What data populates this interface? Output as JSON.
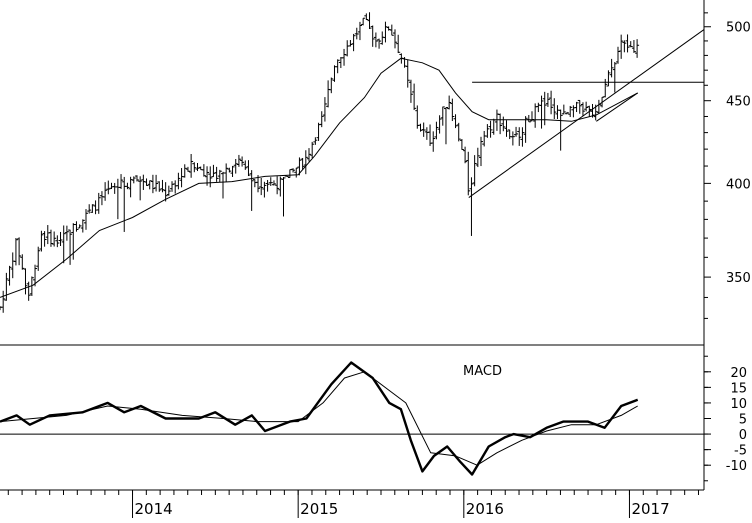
{
  "chart_data": [
    {
      "type": "ohlc",
      "title": "",
      "x_unit": "year",
      "xlim": [
        2013.2,
        2017.45
      ],
      "ylim": [
        320,
        515
      ],
      "y_scale": "log",
      "ytick_labels": [
        {
          "value": 350,
          "label": "350"
        },
        {
          "value": 400,
          "label": "400"
        },
        {
          "value": 450,
          "label": "450"
        },
        {
          "value": 500,
          "label": "500"
        }
      ],
      "xtick_labels": [
        {
          "value": 2014,
          "label": "2014"
        },
        {
          "value": 2015,
          "label": "2015"
        },
        {
          "value": 2016,
          "label": "2016"
        },
        {
          "value": 2017,
          "label": "2017"
        }
      ],
      "grid": false,
      "anchors": [
        [
          2013.2,
          335
        ],
        [
          2013.3,
          368
        ],
        [
          2013.37,
          340
        ],
        [
          2013.45,
          372
        ],
        [
          2013.55,
          368
        ],
        [
          2013.7,
          380
        ],
        [
          2013.85,
          395
        ],
        [
          2013.95,
          400
        ],
        [
          2014.05,
          402
        ],
        [
          2014.2,
          395
        ],
        [
          2014.35,
          410
        ],
        [
          2014.5,
          405
        ],
        [
          2014.65,
          413
        ],
        [
          2014.75,
          400
        ],
        [
          2014.9,
          400
        ],
        [
          2015.05,
          415
        ],
        [
          2015.15,
          440
        ],
        [
          2015.22,
          475
        ],
        [
          2015.32,
          490
        ],
        [
          2015.4,
          504
        ],
        [
          2015.47,
          490
        ],
        [
          2015.55,
          500
        ],
        [
          2015.62,
          480
        ],
        [
          2015.72,
          435
        ],
        [
          2015.8,
          425
        ],
        [
          2015.9,
          450
        ],
        [
          2016.0,
          415
        ],
        [
          2016.03,
          395
        ],
        [
          2016.1,
          425
        ],
        [
          2016.2,
          440
        ],
        [
          2016.3,
          425
        ],
        [
          2016.4,
          440
        ],
        [
          2016.5,
          450
        ],
        [
          2016.6,
          440
        ],
        [
          2016.7,
          447
        ],
        [
          2016.8,
          440
        ],
        [
          2016.87,
          465
        ],
        [
          2016.95,
          488
        ],
        [
          2017.05,
          485
        ]
      ],
      "overlays": [
        {
          "name": "",
          "kind": "moving-average",
          "points": [
            [
              2013.2,
              340
            ],
            [
              2013.4,
              346
            ],
            [
              2013.6,
              359
            ],
            [
              2013.8,
              374
            ],
            [
              2014.0,
              381
            ],
            [
              2014.2,
              391
            ],
            [
              2014.4,
              400
            ],
            [
              2014.6,
              401
            ],
            [
              2014.8,
              404
            ],
            [
              2015.0,
              405
            ],
            [
              2015.1,
              416
            ],
            [
              2015.25,
              436
            ],
            [
              2015.4,
              452
            ],
            [
              2015.5,
              468
            ],
            [
              2015.62,
              478
            ],
            [
              2015.75,
              475
            ],
            [
              2015.85,
              470
            ],
            [
              2015.95,
              455
            ],
            [
              2016.05,
              443
            ],
            [
              2016.15,
              438
            ],
            [
              2016.3,
              438
            ],
            [
              2016.5,
              438
            ],
            [
              2016.65,
              437
            ],
            [
              2016.8,
              441
            ],
            [
              2017.05,
              455
            ]
          ]
        }
      ],
      "trendlines": [
        {
          "points": [
            [
              2016.03,
              392
            ],
            [
              2017.45,
              498
            ]
          ]
        },
        {
          "points": [
            [
              2016.8,
              437
            ],
            [
              2017.05,
              455
            ]
          ]
        },
        {
          "points": [
            [
              2016.05,
              462
            ],
            [
              2017.45,
              462
            ]
          ]
        }
      ]
    },
    {
      "type": "line",
      "title": "",
      "annotation": "MACD",
      "xlim": [
        2013.2,
        2017.45
      ],
      "ylim": [
        -17,
        27
      ],
      "ytick_labels": [
        {
          "value": 20,
          "label": "20"
        },
        {
          "value": 15,
          "label": "15"
        },
        {
          "value": 10,
          "label": "10"
        },
        {
          "value": 5,
          "label": "5"
        },
        {
          "value": 0,
          "label": "0"
        },
        {
          "value": -5,
          "label": "-5"
        },
        {
          "value": -10,
          "label": "-10"
        }
      ],
      "zero_line": true,
      "series": [
        {
          "name": "",
          "style": "thick",
          "points": [
            [
              2013.2,
              4
            ],
            [
              2013.3,
              6
            ],
            [
              2013.38,
              3
            ],
            [
              2013.5,
              6
            ],
            [
              2013.7,
              7
            ],
            [
              2013.85,
              10
            ],
            [
              2013.95,
              7
            ],
            [
              2014.05,
              9
            ],
            [
              2014.2,
              5
            ],
            [
              2014.4,
              5
            ],
            [
              2014.5,
              7
            ],
            [
              2014.62,
              3
            ],
            [
              2014.72,
              6
            ],
            [
              2014.8,
              1
            ],
            [
              2014.95,
              4
            ],
            [
              2015.05,
              5
            ],
            [
              2015.2,
              16
            ],
            [
              2015.32,
              23
            ],
            [
              2015.45,
              18
            ],
            [
              2015.55,
              10
            ],
            [
              2015.62,
              8
            ],
            [
              2015.68,
              -2
            ],
            [
              2015.75,
              -12
            ],
            [
              2015.82,
              -7
            ],
            [
              2015.9,
              -4
            ],
            [
              2015.98,
              -9
            ],
            [
              2016.05,
              -13
            ],
            [
              2016.15,
              -4
            ],
            [
              2016.25,
              -1
            ],
            [
              2016.3,
              0
            ],
            [
              2016.4,
              -1
            ],
            [
              2016.5,
              2
            ],
            [
              2016.6,
              4
            ],
            [
              2016.75,
              4
            ],
            [
              2016.85,
              2
            ],
            [
              2016.95,
              9
            ],
            [
              2017.05,
              11
            ]
          ]
        },
        {
          "name": "",
          "style": "thin",
          "points": [
            [
              2013.2,
              4
            ],
            [
              2013.4,
              5
            ],
            [
              2013.6,
              6
            ],
            [
              2013.85,
              9
            ],
            [
              2014.05,
              8
            ],
            [
              2014.3,
              6
            ],
            [
              2014.55,
              5
            ],
            [
              2014.75,
              4
            ],
            [
              2015.0,
              4
            ],
            [
              2015.15,
              10
            ],
            [
              2015.28,
              18
            ],
            [
              2015.4,
              20
            ],
            [
              2015.55,
              14
            ],
            [
              2015.65,
              10
            ],
            [
              2015.8,
              -6
            ],
            [
              2015.95,
              -7
            ],
            [
              2016.08,
              -10
            ],
            [
              2016.2,
              -6
            ],
            [
              2016.35,
              -2
            ],
            [
              2016.5,
              1
            ],
            [
              2016.65,
              3
            ],
            [
              2016.8,
              3
            ],
            [
              2016.95,
              6
            ],
            [
              2017.05,
              9
            ]
          ]
        }
      ]
    }
  ]
}
